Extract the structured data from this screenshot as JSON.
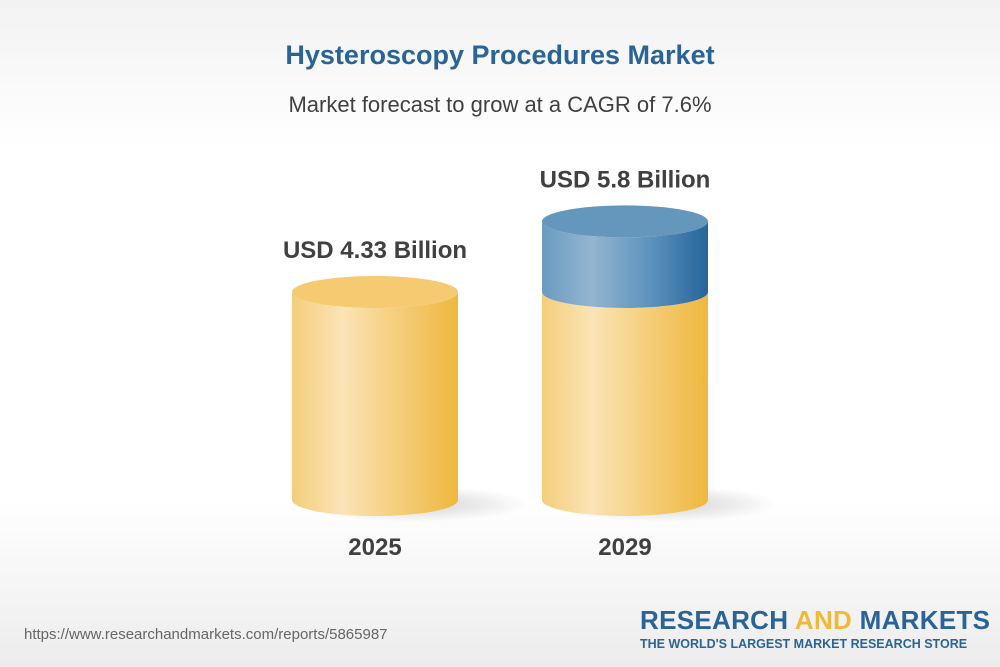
{
  "header": {
    "title": "Hysteroscopy Procedures Market",
    "subtitle": "Market forecast to grow at a CAGR of 7.6%"
  },
  "chart_data": {
    "type": "bar",
    "style": "3d-cylinder",
    "categories": [
      "2025",
      "2029"
    ],
    "values": [
      4.33,
      5.8
    ],
    "unit": "USD Billion",
    "data_labels": [
      "USD 4.33 Billion",
      "USD 5.8 Billion"
    ],
    "title": "Hysteroscopy Procedures Market",
    "subtitle": "Market forecast to grow at a CAGR of 7.6%",
    "cagr": "7.6%",
    "colors": {
      "base": "#f3c35a",
      "growth": "#3d7aad",
      "text": "#404040"
    },
    "grid": false
  },
  "footer": {
    "url": "https://www.researchandmarkets.com/reports/5865987",
    "logo": {
      "word1": "RESEARCH",
      "word2": "AND",
      "word3": "MARKETS",
      "tagline": "THE WORLD'S LARGEST MARKET RESEARCH STORE"
    }
  }
}
